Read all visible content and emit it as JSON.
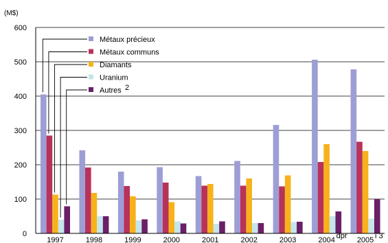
{
  "chart_data": {
    "type": "bar",
    "ylabel": "(M$)",
    "ylim": [
      0,
      600
    ],
    "yticks": [
      0,
      100,
      200,
      300,
      400,
      500,
      600
    ],
    "grid": true,
    "legend_position": "top-left",
    "categories": [
      "1997",
      "1998",
      "1999",
      "2000",
      "2001",
      "2002",
      "2003",
      "2004",
      "2005"
    ],
    "category_notes": [
      "",
      "",
      "",
      "",
      "",
      "",
      "",
      "dpr",
      "i 3"
    ],
    "series": [
      {
        "name": "Métaux précieux",
        "color": "#9e9ed6",
        "values": [
          405,
          242,
          180,
          193,
          167,
          211,
          316,
          506,
          478
        ]
      },
      {
        "name": "Métaux communs",
        "color": "#b8325a",
        "values": [
          285,
          192,
          138,
          148,
          139,
          139,
          137,
          208,
          267
        ]
      },
      {
        "name": "Diamants",
        "color": "#f7b21b",
        "values": [
          113,
          118,
          108,
          91,
          144,
          160,
          169,
          260,
          240
        ]
      },
      {
        "name": "Uranium",
        "color": "#c5e6ec",
        "values": [
          40,
          50,
          38,
          35,
          28,
          30,
          33,
          50,
          43
        ]
      },
      {
        "name": "Autres",
        "name_superscript": "2",
        "color": "#6a1f66",
        "values": [
          79,
          50,
          41,
          29,
          35,
          30,
          34,
          64,
          100
        ]
      }
    ]
  }
}
